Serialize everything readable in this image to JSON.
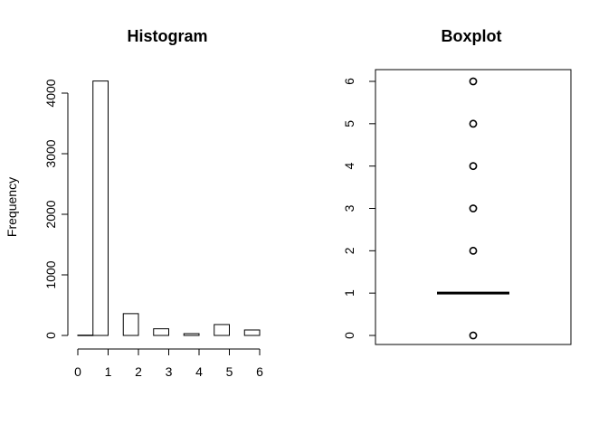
{
  "chart_data": [
    {
      "type": "bar",
      "title": "Histogram",
      "xlabel": "",
      "ylabel": "Frequency",
      "bins": [
        [
          0,
          0.5
        ],
        [
          0.5,
          1
        ],
        [
          1.5,
          2
        ],
        [
          2.5,
          3
        ],
        [
          3.5,
          4
        ],
        [
          4.5,
          5
        ],
        [
          5.5,
          6
        ]
      ],
      "values": [
        5,
        4200,
        360,
        110,
        30,
        180,
        90
      ],
      "x_ticks": [
        "0",
        "1",
        "2",
        "3",
        "4",
        "5",
        "6"
      ],
      "y_ticks": [
        "0",
        "1000",
        "2000",
        "3000",
        "4000"
      ],
      "xlim": [
        0,
        6
      ],
      "ylim": [
        0,
        4200
      ]
    },
    {
      "type": "box",
      "title": "Boxplot",
      "median": 1,
      "q1": 1,
      "q3": 1,
      "outliers": [
        0,
        2,
        3,
        4,
        5,
        6
      ],
      "y_ticks": [
        "0",
        "1",
        "2",
        "3",
        "4",
        "5",
        "6"
      ],
      "ylim": [
        0,
        6
      ]
    }
  ]
}
